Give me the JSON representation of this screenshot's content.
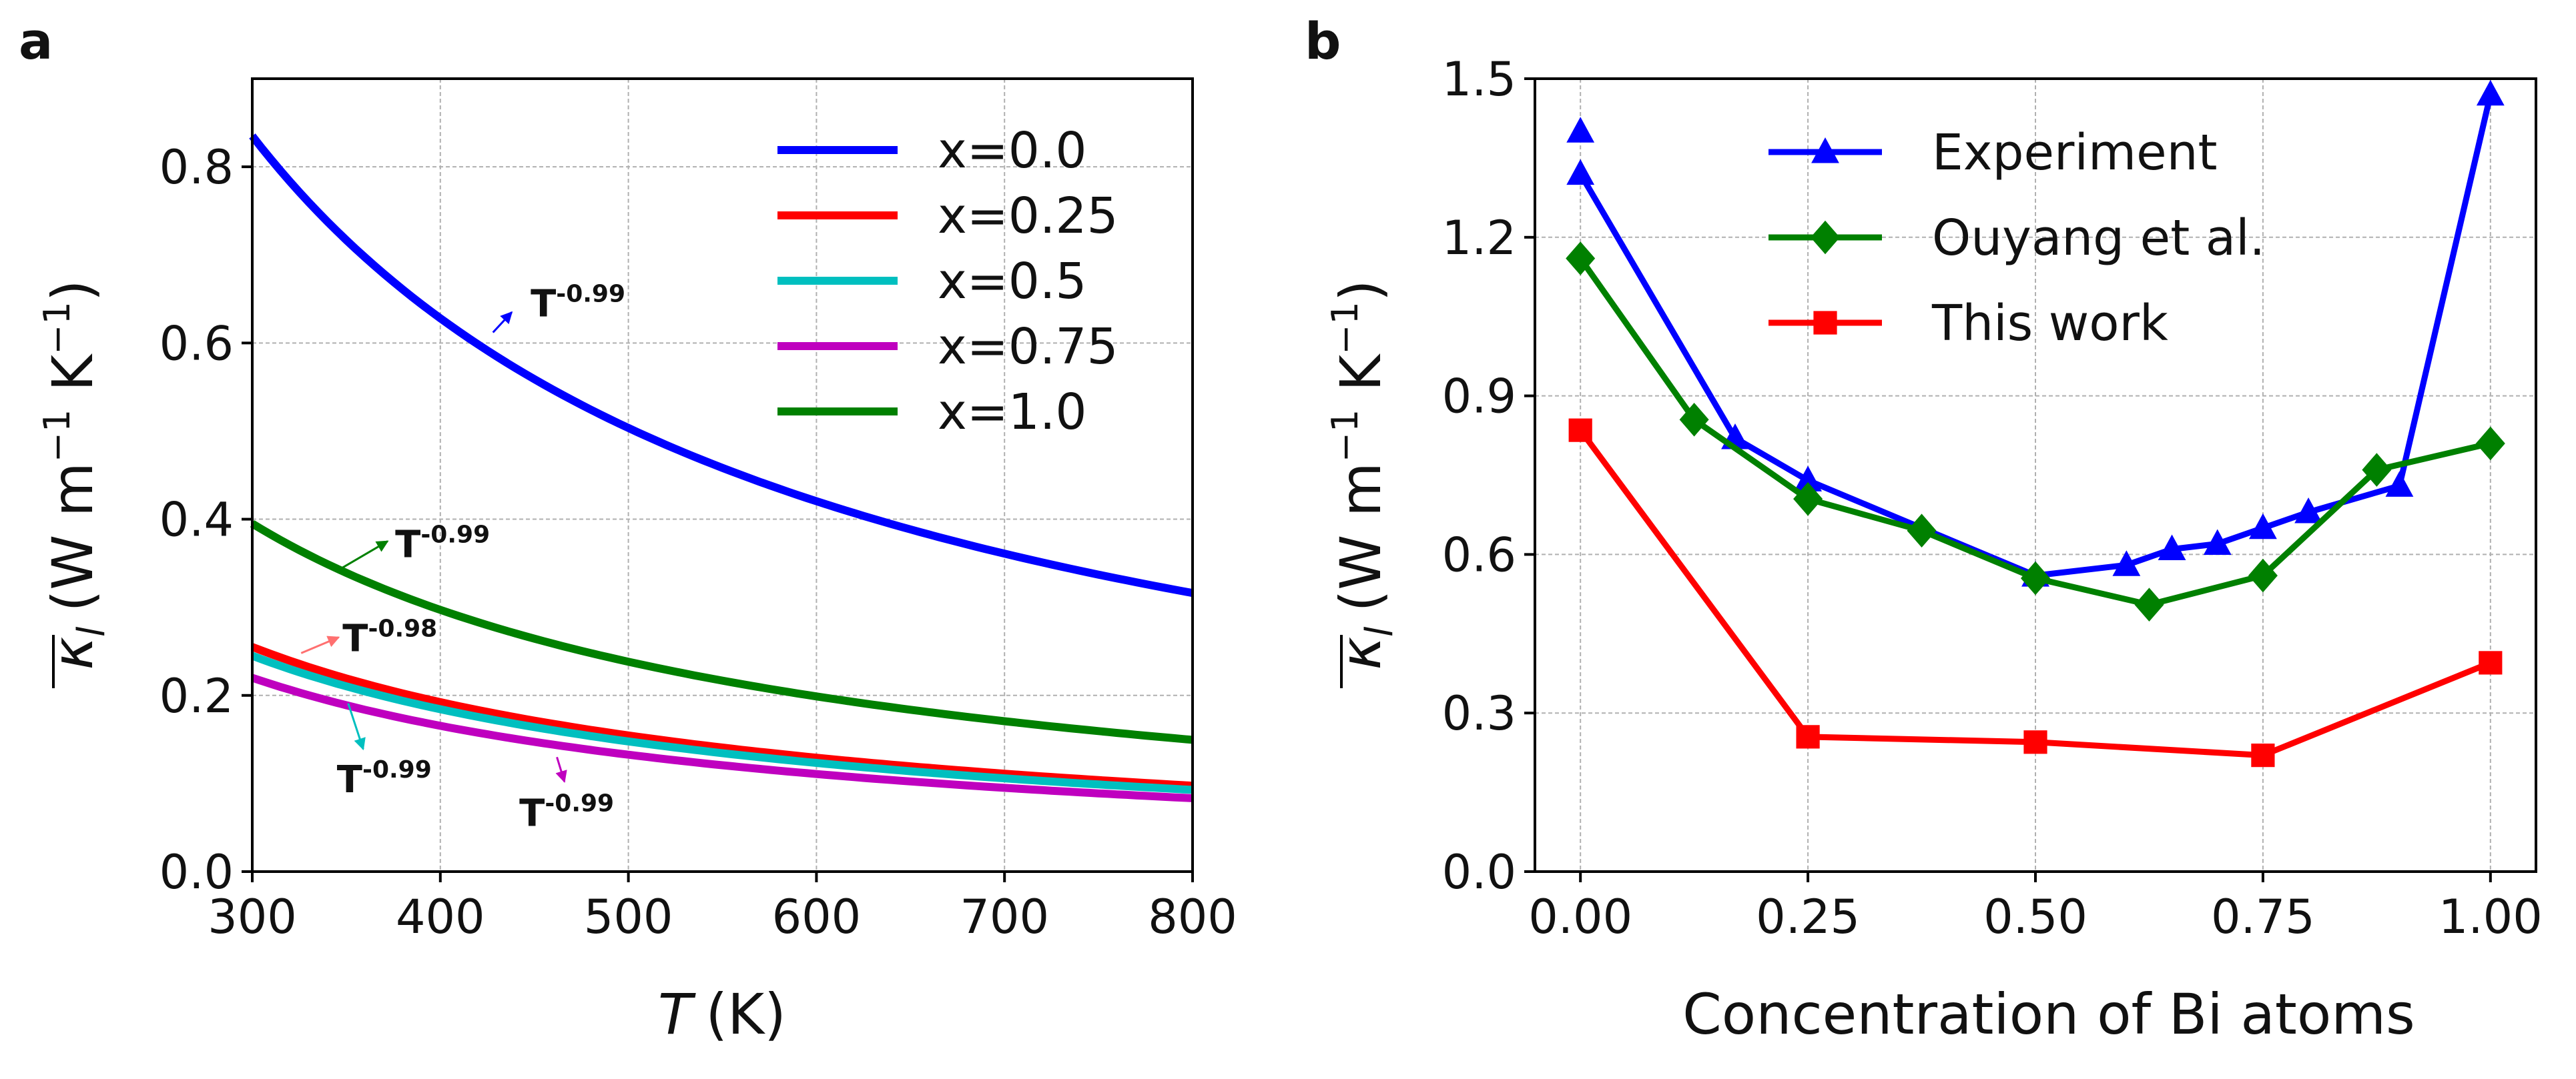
{
  "panels": [
    {
      "letter": "a",
      "chart_data": {
        "type": "line",
        "title": "",
        "xlabel_symbol": "T",
        "xlabel_unit": "(K)",
        "ylabel_main": "κ",
        "ylabel_sub": "l",
        "ylabel_units": "(W m",
        "ylabel_exp1": "−1",
        "ylabel_mid": " K",
        "ylabel_exp2": "−1",
        "ylabel_close": ")",
        "xlim": [
          300,
          800
        ],
        "ylim": [
          0.0,
          0.9
        ],
        "xticks": [
          300,
          400,
          500,
          600,
          700,
          800
        ],
        "xtick_labels": [
          "300",
          "400",
          "500",
          "600",
          "700",
          "800"
        ],
        "yticks": [
          0.0,
          0.2,
          0.4,
          0.6,
          0.8
        ],
        "ytick_labels": [
          "0.0",
          "0.2",
          "0.4",
          "0.6",
          "0.8"
        ],
        "grid": true,
        "legend_position": "top-right",
        "series": [
          {
            "name": "x=0.0",
            "color": "#0000ff",
            "a0": 0.835,
            "exponent": -0.99
          },
          {
            "name": "x=0.25",
            "color": "#ff0000",
            "a0": 0.255,
            "exponent": -0.98
          },
          {
            "name": "x=0.5",
            "color": "#00bfbf",
            "a0": 0.245,
            "exponent": -0.99
          },
          {
            "name": "x=0.75",
            "color": "#bf00bf",
            "a0": 0.22,
            "exponent": -0.99
          },
          {
            "name": "x=1.0",
            "color": "#008000",
            "a0": 0.395,
            "exponent": -0.99
          }
        ],
        "annotations": [
          {
            "series": 0,
            "base": "T",
            "sup": "-0.99",
            "text_x": 448,
            "text_y": 0.63,
            "arrow_to_x": 438,
            "arrow_to_y": 0.635,
            "arrow_from_x": 428,
            "arrow_from_y": 0.612,
            "color": "#0000ff"
          },
          {
            "series": 4,
            "base": "T",
            "sup": "-0.99",
            "text_x": 376,
            "text_y": 0.357,
            "arrow_to_x": 372,
            "arrow_to_y": 0.375,
            "arrow_from_x": 348,
            "arrow_from_y": 0.345,
            "color": "#008000"
          },
          {
            "series": 1,
            "base": "T",
            "sup": "-0.98",
            "text_x": 348,
            "text_y": 0.25,
            "arrow_to_x": 346,
            "arrow_to_y": 0.266,
            "arrow_from_x": 326,
            "arrow_from_y": 0.248,
            "color": "#ff7070"
          },
          {
            "series": 2,
            "base": "T",
            "sup": "-0.99",
            "text_x": 345,
            "text_y": 0.09,
            "arrow_to_x": 359,
            "arrow_to_y": 0.139,
            "arrow_from_x": 351,
            "arrow_from_y": 0.191,
            "color": "#00bfbf"
          },
          {
            "series": 3,
            "base": "T",
            "sup": "-0.99",
            "text_x": 442,
            "text_y": 0.052,
            "arrow_to_x": 466,
            "arrow_to_y": 0.102,
            "arrow_from_x": 462,
            "arrow_from_y": 0.13,
            "color": "#bf00bf"
          }
        ]
      }
    },
    {
      "letter": "b",
      "chart_data": {
        "type": "line",
        "title": "",
        "xlabel": "Concentration of Bi atoms",
        "ylabel_main": "κ",
        "ylabel_sub": "l",
        "ylabel_units": "(W m",
        "ylabel_exp1": "−1",
        "ylabel_mid": " K",
        "ylabel_exp2": "−1",
        "ylabel_close": ")",
        "xlim": [
          -0.05,
          1.05
        ],
        "ylim": [
          0.0,
          1.5
        ],
        "xticks": [
          0.0,
          0.25,
          0.5,
          0.75,
          1.0
        ],
        "xtick_labels": [
          "0.00",
          "0.25",
          "0.50",
          "0.75",
          "1.00"
        ],
        "yticks": [
          0.0,
          0.3,
          0.6,
          0.9,
          1.2,
          1.5
        ],
        "ytick_labels": [
          "0.0",
          "0.3",
          "0.6",
          "0.9",
          "1.2",
          "1.5"
        ],
        "grid": true,
        "legend_position": "top-center",
        "series": [
          {
            "name": "Experiment",
            "color": "#0000ff",
            "marker": "triangle",
            "x": [
              0.0,
              0.17,
              0.25,
              0.5,
              0.6,
              0.65,
              0.7,
              0.75,
              0.8,
              0.9,
              1.0
            ],
            "y": [
              1.32,
              0.82,
              0.74,
              0.56,
              0.58,
              0.61,
              0.62,
              0.65,
              0.68,
              0.73,
              1.47
            ]
          },
          {
            "name": "Ouyang et al.",
            "color": "#008000",
            "marker": "diamond",
            "x": [
              0.0,
              0.125,
              0.25,
              0.375,
              0.5,
              0.625,
              0.75,
              0.875,
              1.0
            ],
            "y": [
              1.16,
              0.855,
              0.705,
              0.645,
              0.555,
              0.505,
              0.56,
              0.76,
              0.81
            ]
          },
          {
            "name": "This work",
            "color": "#ff0000",
            "marker": "square",
            "x": [
              0.0,
              0.25,
              0.5,
              0.75,
              1.0
            ],
            "y": [
              0.835,
              0.255,
              0.245,
              0.22,
              0.395
            ]
          }
        ],
        "extra_points": [
          {
            "series": "Experiment",
            "marker": "triangle",
            "color": "#0000ff",
            "x": 0.0,
            "y": 1.4
          }
        ]
      }
    }
  ]
}
